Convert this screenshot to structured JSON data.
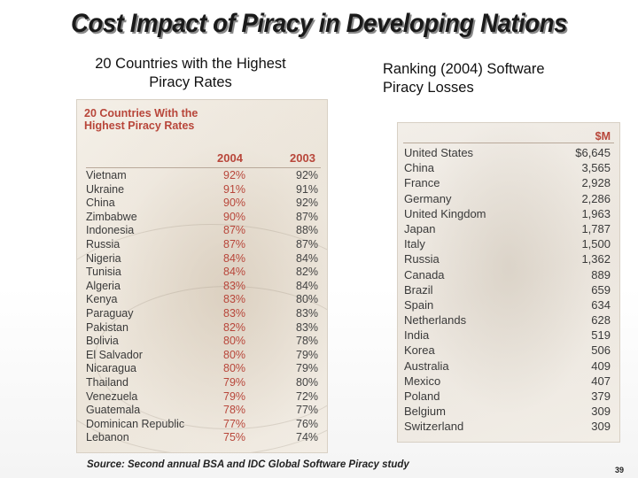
{
  "slide": {
    "title": "Cost Impact of Piracy in Developing Nations",
    "left_subhead_line1": "20 Countries with the Highest",
    "left_subhead_line2": "Piracy Rates",
    "right_subhead_line1": "Ranking  (2004) Software",
    "right_subhead_line2": "Piracy Losses",
    "source": "Source: Second annual BSA and IDC  Global Software Piracy study",
    "page_number": "39"
  },
  "rates_table": {
    "heading_line1": "20 Countries With the",
    "heading_line2": "Highest Piracy Rates",
    "col_2004": "2004",
    "col_2003": "2003",
    "rows": [
      {
        "country": "Vietnam",
        "y2004": "92%",
        "y2003": "92%"
      },
      {
        "country": "Ukraine",
        "y2004": "91%",
        "y2003": "91%"
      },
      {
        "country": "China",
        "y2004": "90%",
        "y2003": "92%"
      },
      {
        "country": "Zimbabwe",
        "y2004": "90%",
        "y2003": "87%"
      },
      {
        "country": "Indonesia",
        "y2004": "87%",
        "y2003": "88%"
      },
      {
        "country": "Russia",
        "y2004": "87%",
        "y2003": "87%"
      },
      {
        "country": "Nigeria",
        "y2004": "84%",
        "y2003": "84%"
      },
      {
        "country": "Tunisia",
        "y2004": "84%",
        "y2003": "82%"
      },
      {
        "country": "Algeria",
        "y2004": "83%",
        "y2003": "84%"
      },
      {
        "country": "Kenya",
        "y2004": "83%",
        "y2003": "80%"
      },
      {
        "country": "Paraguay",
        "y2004": "83%",
        "y2003": "83%"
      },
      {
        "country": "Pakistan",
        "y2004": "82%",
        "y2003": "83%"
      },
      {
        "country": "Bolivia",
        "y2004": "80%",
        "y2003": "78%"
      },
      {
        "country": "El Salvador",
        "y2004": "80%",
        "y2003": "79%"
      },
      {
        "country": "Nicaragua",
        "y2004": "80%",
        "y2003": "79%"
      },
      {
        "country": "Thailand",
        "y2004": "79%",
        "y2003": "80%"
      },
      {
        "country": "Venezuela",
        "y2004": "79%",
        "y2003": "72%"
      },
      {
        "country": "Guatemala",
        "y2004": "78%",
        "y2003": "77%"
      },
      {
        "country": "Dominican Republic",
        "y2004": "77%",
        "y2003": "76%"
      },
      {
        "country": "Lebanon",
        "y2004": "75%",
        "y2003": "74%"
      }
    ]
  },
  "losses_table": {
    "unit_label": "$M",
    "rows": [
      {
        "country": "United States",
        "amount": "$6,645"
      },
      {
        "country": "China",
        "amount": "3,565"
      },
      {
        "country": "France",
        "amount": "2,928"
      },
      {
        "country": "Germany",
        "amount": "2,286"
      },
      {
        "country": "United Kingdom",
        "amount": "1,963"
      },
      {
        "country": "Japan",
        "amount": "1,787"
      },
      {
        "country": "Italy",
        "amount": "1,500"
      },
      {
        "country": "Russia",
        "amount": "1,362"
      },
      {
        "country": "Canada",
        "amount": "889"
      },
      {
        "country": "Brazil",
        "amount": "659"
      },
      {
        "country": "Spain",
        "amount": "634"
      },
      {
        "country": "Netherlands",
        "amount": "628"
      },
      {
        "country": "India",
        "amount": "519"
      },
      {
        "country": "Korea",
        "amount": "506"
      },
      {
        "country": "Australia",
        "amount": "409"
      },
      {
        "country": "Mexico",
        "amount": "407"
      },
      {
        "country": "Poland",
        "amount": "379"
      },
      {
        "country": "Belgium",
        "amount": "309"
      },
      {
        "country": "Switzerland",
        "amount": "309"
      }
    ]
  },
  "colors": {
    "accent_red": "#b8463a",
    "panel_bg": "#efe9e0"
  }
}
